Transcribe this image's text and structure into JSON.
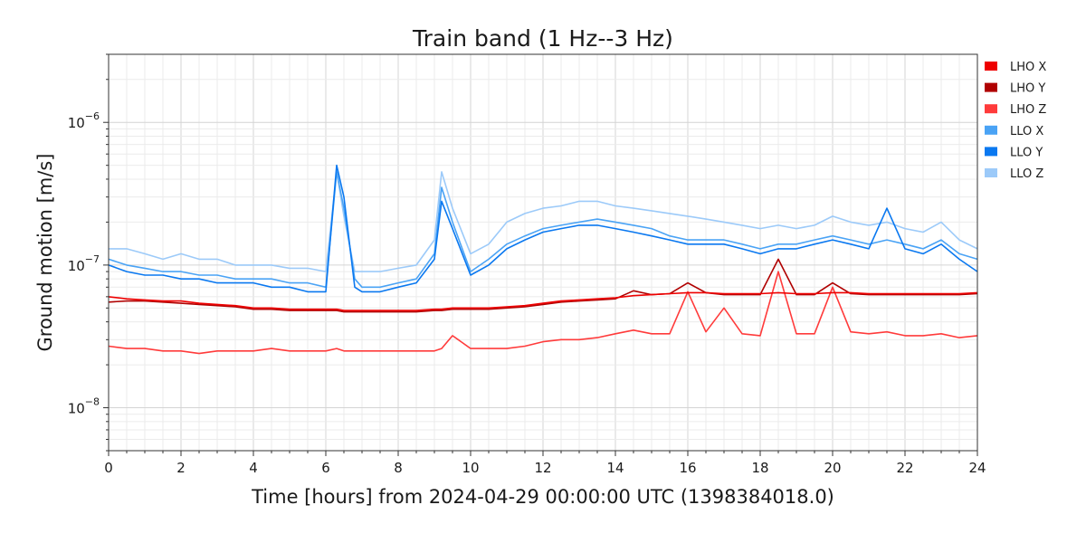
{
  "chart_data": {
    "type": "line",
    "title": "Train band (1 Hz--3 Hz)",
    "xlabel": "Time [hours] from 2024-04-29 00:00:00 UTC (1398384018.0)",
    "ylabel": "Ground motion [m/s]",
    "xlim": [
      0,
      24
    ],
    "ylim": [
      5e-09,
      3e-06
    ],
    "yscale": "log",
    "grid": true,
    "legend_position": "right",
    "x_ticks": [
      "0",
      "2",
      "4",
      "6",
      "8",
      "10",
      "12",
      "14",
      "16",
      "18",
      "20",
      "22",
      "24"
    ],
    "y_ticks": [
      {
        "base": "10",
        "exp": "−8",
        "value": 1e-08
      },
      {
        "base": "10",
        "exp": "−7",
        "value": 1e-07
      },
      {
        "base": "10",
        "exp": "−6",
        "value": 1e-06
      }
    ],
    "x": [
      0,
      0.5,
      1,
      1.5,
      2,
      2.5,
      3,
      3.5,
      4,
      4.5,
      5,
      5.5,
      6,
      6.3,
      6.5,
      6.8,
      7,
      7.5,
      8,
      8.5,
      9,
      9.2,
      9.5,
      10,
      10.5,
      11,
      11.5,
      12,
      12.5,
      13,
      13.5,
      14,
      14.5,
      15,
      15.5,
      16,
      16.5,
      17,
      17.5,
      18,
      18.5,
      19,
      19.5,
      20,
      20.5,
      21,
      21.5,
      22,
      22.5,
      23,
      23.5,
      24
    ],
    "series": [
      {
        "name": "LHO X",
        "color": "#ee0000",
        "values": [
          6e-08,
          5.8e-08,
          5.7e-08,
          5.6e-08,
          5.6e-08,
          5.4e-08,
          5.3e-08,
          5.2e-08,
          5e-08,
          5e-08,
          4.9e-08,
          4.9e-08,
          4.9e-08,
          4.9e-08,
          4.8e-08,
          4.8e-08,
          4.8e-08,
          4.8e-08,
          4.8e-08,
          4.8e-08,
          4.9e-08,
          4.9e-08,
          5e-08,
          5e-08,
          5e-08,
          5.1e-08,
          5.2e-08,
          5.4e-08,
          5.6e-08,
          5.7e-08,
          5.8e-08,
          5.9e-08,
          6.1e-08,
          6.2e-08,
          6.3e-08,
          6.4e-08,
          6.4e-08,
          6.3e-08,
          6.3e-08,
          6.3e-08,
          6.4e-08,
          6.3e-08,
          6.3e-08,
          6.4e-08,
          6.4e-08,
          6.3e-08,
          6.3e-08,
          6.3e-08,
          6.3e-08,
          6.3e-08,
          6.3e-08,
          6.4e-08
        ]
      },
      {
        "name": "LHO Y",
        "color": "#b00000",
        "values": [
          5.5e-08,
          5.6e-08,
          5.6e-08,
          5.5e-08,
          5.4e-08,
          5.3e-08,
          5.2e-08,
          5.1e-08,
          4.9e-08,
          4.9e-08,
          4.8e-08,
          4.8e-08,
          4.8e-08,
          4.8e-08,
          4.7e-08,
          4.7e-08,
          4.7e-08,
          4.7e-08,
          4.7e-08,
          4.7e-08,
          4.8e-08,
          4.8e-08,
          4.9e-08,
          4.9e-08,
          4.9e-08,
          5e-08,
          5.1e-08,
          5.3e-08,
          5.5e-08,
          5.6e-08,
          5.7e-08,
          5.8e-08,
          6.6e-08,
          6.2e-08,
          6.3e-08,
          7.5e-08,
          6.4e-08,
          6.2e-08,
          6.2e-08,
          6.2e-08,
          1.1e-07,
          6.2e-08,
          6.2e-08,
          7.5e-08,
          6.3e-08,
          6.2e-08,
          6.2e-08,
          6.2e-08,
          6.2e-08,
          6.2e-08,
          6.2e-08,
          6.3e-08
        ]
      },
      {
        "name": "LHO Z",
        "color": "#ff3b3b",
        "values": [
          2.7e-08,
          2.6e-08,
          2.6e-08,
          2.5e-08,
          2.5e-08,
          2.4e-08,
          2.5e-08,
          2.5e-08,
          2.5e-08,
          2.6e-08,
          2.5e-08,
          2.5e-08,
          2.5e-08,
          2.6e-08,
          2.5e-08,
          2.5e-08,
          2.5e-08,
          2.5e-08,
          2.5e-08,
          2.5e-08,
          2.5e-08,
          2.6e-08,
          3.2e-08,
          2.6e-08,
          2.6e-08,
          2.6e-08,
          2.7e-08,
          2.9e-08,
          3e-08,
          3e-08,
          3.1e-08,
          3.3e-08,
          3.5e-08,
          3.3e-08,
          3.3e-08,
          6.5e-08,
          3.4e-08,
          5e-08,
          3.3e-08,
          3.2e-08,
          9e-08,
          3.3e-08,
          3.3e-08,
          7e-08,
          3.4e-08,
          3.3e-08,
          3.4e-08,
          3.2e-08,
          3.2e-08,
          3.3e-08,
          3.1e-08,
          3.2e-08
        ]
      },
      {
        "name": "LLO X",
        "color": "#4aa3f5",
        "values": [
          1.1e-07,
          1e-07,
          9.5e-08,
          9e-08,
          9e-08,
          8.5e-08,
          8.5e-08,
          8e-08,
          8e-08,
          8e-08,
          7.5e-08,
          7.5e-08,
          7e-08,
          4.5e-07,
          2.5e-07,
          8e-08,
          7e-08,
          7e-08,
          7.5e-08,
          8e-08,
          1.2e-07,
          3.5e-07,
          2e-07,
          9e-08,
          1.1e-07,
          1.4e-07,
          1.6e-07,
          1.8e-07,
          1.9e-07,
          2e-07,
          2.1e-07,
          2e-07,
          1.9e-07,
          1.8e-07,
          1.6e-07,
          1.5e-07,
          1.5e-07,
          1.5e-07,
          1.4e-07,
          1.3e-07,
          1.4e-07,
          1.4e-07,
          1.5e-07,
          1.6e-07,
          1.5e-07,
          1.4e-07,
          1.5e-07,
          1.4e-07,
          1.3e-07,
          1.5e-07,
          1.2e-07,
          1.1e-07
        ]
      },
      {
        "name": "LLO Y",
        "color": "#0a78f0",
        "values": [
          1e-07,
          9e-08,
          8.5e-08,
          8.5e-08,
          8e-08,
          8e-08,
          7.5e-08,
          7.5e-08,
          7.5e-08,
          7e-08,
          7e-08,
          6.5e-08,
          6.5e-08,
          5e-07,
          3e-07,
          7e-08,
          6.5e-08,
          6.5e-08,
          7e-08,
          7.5e-08,
          1.1e-07,
          2.8e-07,
          1.8e-07,
          8.5e-08,
          1e-07,
          1.3e-07,
          1.5e-07,
          1.7e-07,
          1.8e-07,
          1.9e-07,
          1.9e-07,
          1.8e-07,
          1.7e-07,
          1.6e-07,
          1.5e-07,
          1.4e-07,
          1.4e-07,
          1.4e-07,
          1.3e-07,
          1.2e-07,
          1.3e-07,
          1.3e-07,
          1.4e-07,
          1.5e-07,
          1.4e-07,
          1.3e-07,
          2.5e-07,
          1.3e-07,
          1.2e-07,
          1.4e-07,
          1.1e-07,
          9e-08
        ]
      },
      {
        "name": "LLO Z",
        "color": "#9ccaf9",
        "values": [
          1.3e-07,
          1.3e-07,
          1.2e-07,
          1.1e-07,
          1.2e-07,
          1.1e-07,
          1.1e-07,
          1e-07,
          1e-07,
          1e-07,
          9.5e-08,
          9.5e-08,
          9e-08,
          4.5e-07,
          2.2e-07,
          9e-08,
          9e-08,
          9e-08,
          9.5e-08,
          1e-07,
          1.5e-07,
          4.5e-07,
          2.5e-07,
          1.2e-07,
          1.4e-07,
          2e-07,
          2.3e-07,
          2.5e-07,
          2.6e-07,
          2.8e-07,
          2.8e-07,
          2.6e-07,
          2.5e-07,
          2.4e-07,
          2.3e-07,
          2.2e-07,
          2.1e-07,
          2e-07,
          1.9e-07,
          1.8e-07,
          1.9e-07,
          1.8e-07,
          1.9e-07,
          2.2e-07,
          2e-07,
          1.9e-07,
          2e-07,
          1.8e-07,
          1.7e-07,
          2e-07,
          1.5e-07,
          1.3e-07
        ]
      }
    ]
  }
}
